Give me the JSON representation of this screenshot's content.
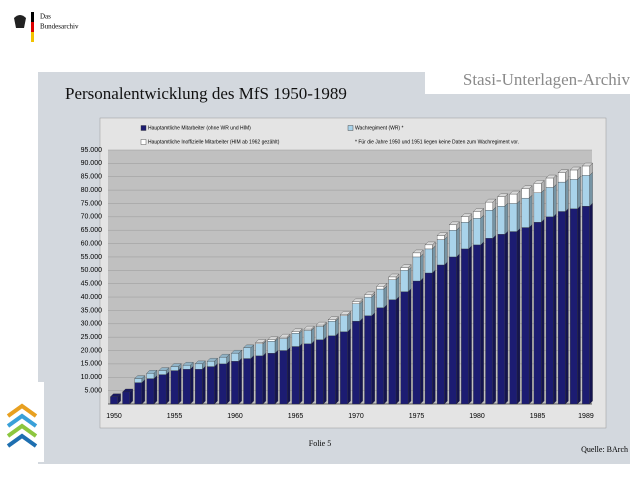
{
  "page": {
    "logo_line1": "Das",
    "logo_line2": "Bundesarchiv",
    "archive": "Stasi-Unterlagen-Archiv",
    "slide": "Folie 5",
    "source": "Quelle: BArch"
  },
  "chart_data": {
    "type": "bar",
    "stacked": true,
    "title": "Personalentwicklung des MfS 1950-1989",
    "footnote": "* Für die Jahre 1950 und 1951 liegen keine Daten zum Wachregiment vor.",
    "categories": [
      1950,
      null,
      null,
      null,
      null,
      1955,
      null,
      null,
      null,
      null,
      1960,
      null,
      null,
      null,
      null,
      1965,
      null,
      null,
      null,
      null,
      1970,
      null,
      null,
      null,
      null,
      1975,
      null,
      null,
      null,
      null,
      1980,
      null,
      null,
      null,
      null,
      1985,
      null,
      null,
      null,
      1989
    ],
    "series": [
      {
        "name": "Hauptamtliche Mitarbeiter (ohne WR und HIM)",
        "color": "#1c1c72",
        "values": [
          2700,
          4500,
          8000,
          9500,
          11000,
          12500,
          13000,
          13000,
          14000,
          15000,
          16000,
          17000,
          18000,
          19000,
          20000,
          21500,
          22500,
          24000,
          25500,
          27000,
          31000,
          33000,
          36000,
          39000,
          42000,
          46000,
          49000,
          52000,
          55000,
          58000,
          59500,
          62000,
          63500,
          64500,
          66000,
          68000,
          70000,
          72000,
          73000,
          74000
        ]
      },
      {
        "name": "Wachregiment (WR) *",
        "color": "#a9d3ea",
        "values": [
          null,
          null,
          1500,
          2000,
          1500,
          1500,
          1500,
          2000,
          2000,
          2500,
          3000,
          4000,
          4500,
          4500,
          4500,
          5000,
          5000,
          5000,
          5500,
          6000,
          6500,
          7000,
          7000,
          7500,
          8000,
          9000,
          9000,
          9500,
          10000,
          10000,
          10000,
          10500,
          10500,
          10500,
          11000,
          11000,
          11000,
          11000,
          11000,
          11500
        ]
      },
      {
        "name": "Hauptamtliche Inoffizielle Mitarbeiter (HIM ab 1962 gezählt)",
        "color": "#ffffff",
        "values": [
          null,
          null,
          null,
          null,
          null,
          null,
          null,
          null,
          null,
          null,
          null,
          null,
          500,
          500,
          500,
          500,
          500,
          500,
          500,
          500,
          700,
          800,
          1000,
          1000,
          1000,
          1500,
          1500,
          1500,
          2000,
          2000,
          2500,
          3000,
          3500,
          3500,
          3500,
          3500,
          3500,
          3500,
          3500,
          3500
        ]
      }
    ],
    "ylim": [
      0,
      95000
    ],
    "yticks": [
      {
        "value": 5000,
        "label": "5.000"
      },
      {
        "value": 10000,
        "label": "10.000"
      },
      {
        "value": 15000,
        "label": "15.000"
      },
      {
        "value": 20000,
        "label": "20.000"
      },
      {
        "value": 25000,
        "label": "25.000"
      },
      {
        "value": 30000,
        "label": "30.000"
      },
      {
        "value": 35000,
        "label": "35.000"
      },
      {
        "value": 40000,
        "label": "40.000"
      },
      {
        "value": 45000,
        "label": "45.000"
      },
      {
        "value": 50000,
        "label": "50.000"
      },
      {
        "value": 55000,
        "label": "55.000"
      },
      {
        "value": 60000,
        "label": "60.000"
      },
      {
        "value": 65000,
        "label": "65.000"
      },
      {
        "value": 70000,
        "label": "70.000"
      },
      {
        "value": 75000,
        "label": "75.000"
      },
      {
        "value": 80000,
        "label": "80.000"
      },
      {
        "value": 85000,
        "label": "85.000"
      },
      {
        "value": 90000,
        "label": "90.000"
      },
      {
        "value": 95000,
        "label": "95.000"
      }
    ],
    "grid": true
  }
}
